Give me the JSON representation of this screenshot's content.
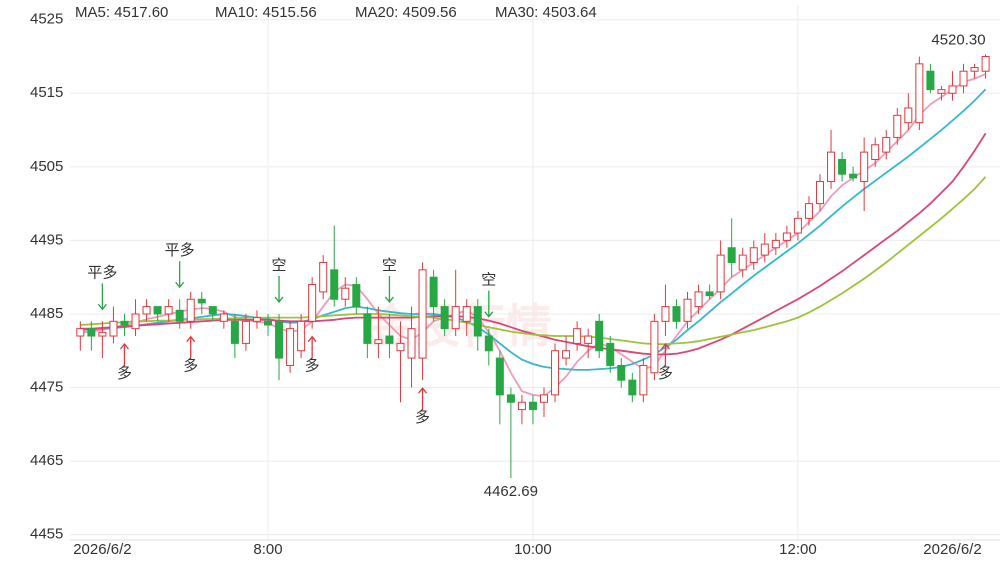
{
  "chart_data": {
    "type": "candlestick",
    "categories": [
      null,
      null,
      "2026/6/2",
      null,
      null,
      null,
      null,
      null,
      null,
      null,
      null,
      null,
      null,
      null,
      null,
      null,
      null,
      "8:00",
      null,
      null,
      null,
      null,
      null,
      null,
      null,
      null,
      null,
      null,
      null,
      null,
      null,
      null,
      null,
      null,
      null,
      null,
      null,
      null,
      null,
      null,
      null,
      "10:00",
      null,
      null,
      null,
      null,
      null,
      null,
      null,
      null,
      null,
      null,
      null,
      null,
      null,
      null,
      null,
      null,
      null,
      null,
      null,
      null,
      null,
      null,
      null,
      "12:00",
      null,
      null,
      null,
      null,
      null,
      null,
      null,
      null,
      null,
      null,
      null,
      null,
      null,
      "2026/6/2",
      null,
      null,
      null
    ],
    "open": [
      4482,
      4483,
      4482,
      4482,
      4484,
      4483,
      4485,
      4486,
      4485,
      4485.5,
      4484,
      4487,
      4486,
      4484,
      4484,
      4481,
      4484,
      4484,
      4484,
      4478,
      4480,
      4484,
      4488,
      4491,
      4487,
      4489,
      4485,
      4481,
      4482,
      4480,
      4479,
      4479,
      4490,
      4486,
      4483,
      4484,
      4486,
      4482,
      4479,
      4474,
      4472,
      4473,
      4473,
      4474,
      4479,
      4481,
      4481,
      4484,
      4481,
      4478,
      4476,
      4474,
      4477,
      4484,
      4486,
      4484,
      4486,
      4488,
      4488,
      4494,
      4491,
      4492,
      4493,
      4494,
      4495,
      4496,
      4498,
      4500,
      4503,
      4506,
      4504,
      4503,
      4506,
      4507,
      4509,
      4511,
      4511,
      4518,
      4515,
      4515,
      4516,
      4518,
      4518
    ],
    "high": [
      4484,
      4484,
      4484,
      4486,
      4485,
      4487,
      4487,
      4486,
      4487,
      4487,
      4488,
      4488,
      4486,
      4485.5,
      4485,
      4485,
      4485.5,
      4485,
      4485,
      4484,
      4485,
      4490,
      4493,
      4497,
      4490,
      4490,
      4486,
      4486,
      4485,
      4484,
      4486,
      4492,
      4491,
      4487,
      4491,
      4487,
      4487,
      4483,
      4480,
      4475,
      4474,
      4474,
      4475,
      4481,
      4482,
      4484,
      4483,
      4485,
      4482,
      4479,
      4477,
      4479,
      4485,
      4489,
      4487,
      4488,
      4489,
      4489,
      4495,
      4498,
      4494,
      4495,
      4496,
      4496,
      4497,
      4499,
      4501,
      4504,
      4510,
      4507,
      4505,
      4509,
      4509,
      4510,
      4513,
      4515,
      4520,
      4519,
      4516,
      4518,
      4519,
      4519,
      4520.3
    ],
    "low": [
      4480,
      4480,
      4479,
      4481,
      4482,
      4482,
      4484,
      4484,
      4484,
      4483,
      4483,
      4485,
      4484,
      4483,
      4479,
      4480,
      4483,
      4482,
      4476,
      4477,
      4479,
      4483,
      4487,
      4486,
      4486,
      4485,
      4479,
      4479,
      4479,
      4473,
      4475,
      4476,
      4484,
      4482,
      4482,
      4482,
      4480,
      4478,
      4470,
      4462.69,
      4470,
      4470,
      4471,
      4473,
      4478,
      4480,
      4479,
      4479,
      4477,
      4475,
      4473,
      4473,
      4476,
      4482,
      4483,
      4483,
      4485,
      4487,
      4487,
      4490,
      4490,
      4491,
      4492,
      4493,
      4494,
      4495,
      4497,
      4499,
      4502,
      4503,
      4503,
      4499,
      4505,
      4506,
      4508,
      4510,
      4510,
      4515,
      4514,
      4514,
      4515,
      4517,
      4517
    ],
    "close": [
      4483,
      4482,
      4482.5,
      4484,
      4483.5,
      4485,
      4486,
      4485,
      4486,
      4484,
      4487,
      4486.5,
      4485,
      4485,
      4481,
      4484,
      4484.5,
      4483.5,
      4479,
      4483,
      4484,
      4489,
      4492,
      4487,
      4488.5,
      4486,
      4481,
      4481.5,
      4481,
      4481,
      4483,
      4491,
      4486,
      4483,
      4486,
      4486,
      4482,
      4480,
      4474,
      4473,
      4473,
      4472,
      4474,
      4480,
      4480,
      4483,
      4482,
      4480,
      4478,
      4476,
      4474,
      4478,
      4484,
      4486,
      4484,
      4487,
      4488,
      4487.5,
      4493,
      4492,
      4493,
      4494,
      4494.5,
      4495,
      4496,
      4498,
      4500,
      4503,
      4507,
      4504,
      4503.5,
      4507,
      4508,
      4509,
      4512,
      4513,
      4519,
      4515.5,
      4515.5,
      4516,
      4518,
      4518.5,
      4520
    ],
    "up_color": "#e2383d",
    "down_color": "#27a845",
    "series": [
      {
        "name": "MA5: 4517.60",
        "color": "#f29ab6",
        "values": [
          4482.5,
          4482.6,
          4482.8,
          4483.2,
          4483.5,
          4483.8,
          4484.3,
          4484.6,
          4485,
          4485.3,
          4485.6,
          4485.8,
          4485.7,
          4485.3,
          4484.6,
          4484.2,
          4483.9,
          4483.8,
          4483,
          4482.6,
          4482.8,
          4484,
          4486,
          4488,
          4489,
          4488.8,
          4487,
          4485,
          4483.5,
          4482,
          4481.5,
          4482.5,
          4484,
          4484.5,
          4485,
          4485.5,
          4484.5,
          4482.5,
          4480,
          4477,
          4474.5,
          4474,
          4473.8,
          4475,
          4476.5,
          4478.5,
          4480,
          4481,
          4480.5,
          4479.5,
          4478.5,
          4477.5,
          4478,
          4480,
          4482,
          4484,
          4485.5,
          4487,
          4488.5,
          4490,
          4491,
          4492,
          4493,
          4494,
          4495,
          4496,
          4497.5,
          4499,
          4501,
          4502.5,
          4503.5,
          4504.5,
          4505.5,
          4507,
          4508.5,
          4510,
          4512,
          4513.5,
          4514.5,
          4515.5,
          4516.5,
          4517,
          4517.6
        ]
      },
      {
        "name": "MA10: 4515.56",
        "color": "#35b6d2",
        "values": [
          4482.8,
          4482.9,
          4483,
          4483.1,
          4483.2,
          4483.4,
          4483.6,
          4483.8,
          4484,
          4484.2,
          4484.4,
          4484.6,
          4484.8,
          4485,
          4484.9,
          4484.7,
          4484.5,
          4484.3,
          4484,
          4483.8,
          4483.9,
          4484.3,
          4484.8,
          4485.3,
          4485.8,
          4486,
          4485.8,
          4485.5,
          4485.3,
          4485.1,
          4485,
          4485,
          4485,
          4484.8,
          4484.5,
          4484,
          4483.2,
          4482.2,
          4481,
          4479.8,
          4478.8,
          4478.2,
          4477.8,
          4477.6,
          4477.5,
          4477.4,
          4477.4,
          4477.5,
          4477.6,
          4477.8,
          4478.2,
          4478.8,
          4479.5,
          4480.5,
          4481.5,
          4482.8,
          4484,
          4485.3,
          4486.6,
          4487.8,
          4489,
          4490.2,
          4491.3,
          4492.4,
          4493.5,
          4494.6,
          4495.8,
          4497,
          4498.3,
          4499.6,
          4500.8,
          4502,
          4503.1,
          4504.2,
          4505.3,
          4506.4,
          4507.6,
          4508.8,
          4510,
          4511.3,
          4512.6,
          4514,
          4515.56
        ]
      },
      {
        "name": "MA20: 4509.56",
        "color": "#de447a",
        "values": [
          4483,
          4483,
          4483.1,
          4483.2,
          4483.3,
          4483.4,
          4483.5,
          4483.6,
          4483.7,
          4483.8,
          4483.9,
          4484,
          4484.1,
          4484.2,
          4484.2,
          4484.2,
          4484.2,
          4484.2,
          4484.1,
          4484,
          4484,
          4484,
          4484.1,
          4484.2,
          4484.4,
          4484.5,
          4484.5,
          4484.5,
          4484.5,
          4484.5,
          4484.5,
          4484.6,
          4484.7,
          4484.7,
          4484.7,
          4484.6,
          4484.4,
          4484.1,
          4483.7,
          4483.2,
          4482.7,
          4482.3,
          4481.9,
          4481.5,
          4481.2,
          4480.9,
          4480.6,
          4480.4,
          4480.2,
          4480,
          4479.8,
          4479.6,
          4479.5,
          4479.5,
          4479.6,
          4479.9,
          4480.3,
          4480.9,
          4481.5,
          4482.2,
          4483,
          4483.8,
          4484.6,
          4485.4,
          4486.2,
          4487,
          4487.9,
          4488.8,
          4489.8,
          4490.8,
          4491.9,
          4493,
          4494.1,
          4495.2,
          4496.3,
          4497.5,
          4498.7,
          4500,
          4501.5,
          4503,
          4505,
          4507.2,
          4509.56
        ]
      },
      {
        "name": "MA30: 4503.64",
        "color": "#9cc33b",
        "values": [
          4483.5,
          4483.6,
          4483.7,
          4483.8,
          4483.9,
          4484,
          4484,
          4484.1,
          4484.1,
          4484.2,
          4484.2,
          4484.3,
          4484.3,
          4484.4,
          4484.4,
          4484.5,
          4484.5,
          4484.5,
          4484.5,
          4484.5,
          4484.5,
          4484.6,
          4484.7,
          4484.8,
          4484.9,
          4485,
          4485,
          4485,
          4484.9,
          4484.8,
          4484.7,
          4484.6,
          4484.5,
          4484.3,
          4484.1,
          4483.8,
          4483.5,
          4483.2,
          4482.9,
          4482.6,
          4482.4,
          4482.2,
          4482.1,
          4482,
          4482,
          4482,
          4481.9,
          4481.8,
          4481.6,
          4481.4,
          4481.2,
          4481,
          4480.9,
          4480.9,
          4481,
          4481.1,
          4481.3,
          4481.6,
          4481.9,
          4482.2,
          4482.5,
          4482.8,
          4483.2,
          4483.6,
          4484,
          4484.5,
          4485.2,
          4486,
          4486.9,
          4487.8,
          4488.8,
          4489.8,
          4490.9,
          4492,
          4493.2,
          4494.4,
          4495.6,
          4496.8,
          4498,
          4499.3,
          4500.6,
          4502,
          4503.64
        ]
      }
    ],
    "ylim": [
      4454,
      4527
    ],
    "yticks": [
      4455,
      4465,
      4475,
      4485,
      4495,
      4505,
      4515,
      4525
    ],
    "grid": true,
    "annotations": [
      {
        "value": 4520.3,
        "label": "4520.30",
        "at": 82,
        "side": "above"
      },
      {
        "value": 4462.69,
        "label": "4462.69",
        "at": 39,
        "side": "below"
      }
    ],
    "signals": [
      {
        "label": "平多",
        "at": 2,
        "side": "above",
        "color": "#27a845"
      },
      {
        "label": "平多",
        "at": 9,
        "side": "above",
        "color": "#27a845"
      },
      {
        "label": "空",
        "at": 18,
        "side": "above",
        "color": "#27a845"
      },
      {
        "label": "空",
        "at": 28,
        "side": "above",
        "color": "#27a845"
      },
      {
        "label": "空",
        "at": 37,
        "side": "above",
        "color": "#27a845"
      },
      {
        "label": "多",
        "at": 4,
        "side": "below",
        "color": "#e2383d"
      },
      {
        "label": "多",
        "at": 10,
        "side": "below",
        "color": "#e2383d"
      },
      {
        "label": "多",
        "at": 21,
        "side": "below",
        "color": "#e2383d"
      },
      {
        "label": "多",
        "at": 31,
        "side": "below",
        "color": "#e2383d"
      },
      {
        "label": "多",
        "at": 53,
        "side": "below",
        "color": "#e2383d"
      }
    ],
    "watermark": "金投行情"
  }
}
